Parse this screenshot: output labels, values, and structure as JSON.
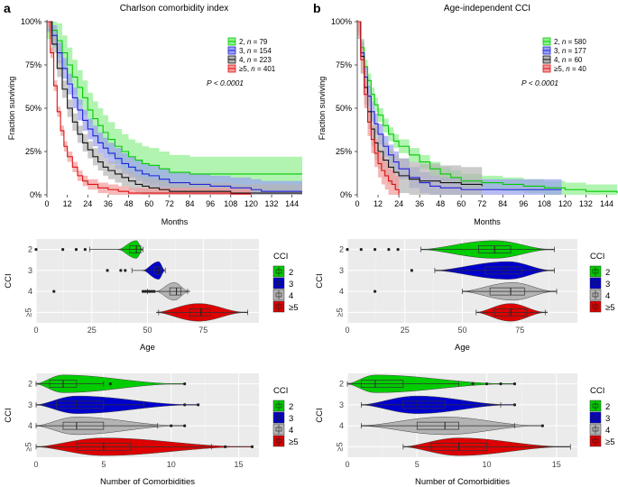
{
  "figure": {
    "panel_labels": [
      "a",
      "b"
    ]
  },
  "chart_data": [
    {
      "id": "km_a",
      "type": "line",
      "title": "Charlson comorbidity index",
      "xlabel": "Months",
      "ylabel": "Fraction surviving",
      "xlim": [
        0,
        150
      ],
      "ylim": [
        0,
        1
      ],
      "xticks": [
        "0",
        "12",
        "24",
        "36",
        "48",
        "60",
        "72",
        "84",
        "96",
        "108",
        "120",
        "132",
        "144"
      ],
      "yticks": [
        "0%",
        "25%",
        "50%",
        "75%",
        "100%"
      ],
      "pvalue": "P < 0.0001",
      "series": [
        {
          "name": "2",
          "n": "79",
          "color": "#00cc00",
          "band": "#8ef08e",
          "x": [
            0,
            3,
            6,
            9,
            12,
            15,
            18,
            21,
            24,
            27,
            30,
            33,
            36,
            40,
            44,
            48,
            52,
            56,
            60,
            66,
            72,
            84,
            96,
            108,
            120,
            132,
            150
          ],
          "y": [
            1,
            0.95,
            0.89,
            0.82,
            0.75,
            0.68,
            0.62,
            0.56,
            0.49,
            0.44,
            0.4,
            0.36,
            0.32,
            0.28,
            0.25,
            0.22,
            0.2,
            0.18,
            0.17,
            0.15,
            0.13,
            0.12,
            0.12,
            0.12,
            0.12,
            0.12,
            0.12
          ],
          "band_half": 0.1
        },
        {
          "name": "3",
          "n": "154",
          "color": "#2222dd",
          "band": "#9aa0f0",
          "x": [
            0,
            3,
            6,
            9,
            12,
            15,
            18,
            21,
            24,
            27,
            30,
            33,
            36,
            40,
            44,
            48,
            52,
            56,
            60,
            66,
            72,
            84,
            96,
            108,
            120,
            126,
            150
          ],
          "y": [
            1,
            0.92,
            0.82,
            0.73,
            0.64,
            0.56,
            0.49,
            0.43,
            0.38,
            0.34,
            0.3,
            0.27,
            0.24,
            0.21,
            0.18,
            0.16,
            0.14,
            0.12,
            0.11,
            0.09,
            0.07,
            0.06,
            0.05,
            0.04,
            0.03,
            0.02,
            0.02
          ],
          "band_half": 0.06
        },
        {
          "name": "4",
          "n": "223",
          "color": "#111111",
          "band": "#b5b5b5",
          "x": [
            0,
            3,
            6,
            9,
            12,
            15,
            18,
            21,
            24,
            27,
            30,
            33,
            36,
            40,
            44,
            48,
            52,
            56,
            60,
            66,
            72,
            84,
            96,
            108,
            120,
            150
          ],
          "y": [
            1,
            0.87,
            0.73,
            0.61,
            0.5,
            0.42,
            0.35,
            0.3,
            0.26,
            0.22,
            0.19,
            0.16,
            0.14,
            0.12,
            0.1,
            0.08,
            0.06,
            0.05,
            0.04,
            0.03,
            0.02,
            0.02,
            0.02,
            0.01,
            0.01,
            0.01
          ],
          "band_half": 0.05
        },
        {
          "name": "≥5",
          "n": "401",
          "color": "#dd1111",
          "band": "#f29a9a",
          "x": [
            0,
            2,
            4,
            6,
            8,
            10,
            12,
            15,
            18,
            21,
            24,
            30,
            36,
            42,
            48,
            60,
            72,
            84,
            96,
            108,
            120
          ],
          "y": [
            1,
            0.82,
            0.63,
            0.48,
            0.37,
            0.28,
            0.22,
            0.16,
            0.11,
            0.08,
            0.06,
            0.04,
            0.03,
            0.02,
            0.01,
            0.01,
            0.01,
            0.01,
            0.01,
            0.005,
            0.005
          ],
          "band_half": 0.03
        }
      ]
    },
    {
      "id": "km_b",
      "type": "line",
      "title": "Age-independent CCI",
      "xlabel": "Months",
      "ylabel": "Fraction surviving",
      "xlim": [
        0,
        150
      ],
      "ylim": [
        0,
        1
      ],
      "xticks": [
        "0",
        "12",
        "24",
        "36",
        "48",
        "60",
        "72",
        "84",
        "96",
        "108",
        "120",
        "132",
        "144"
      ],
      "yticks": [
        "0%",
        "25%",
        "50%",
        "75%",
        "100%"
      ],
      "pvalue": "P < 0.0001",
      "series": [
        {
          "name": "2",
          "n": "580",
          "color": "#00cc00",
          "band": "#8ef08e",
          "x": [
            0,
            2,
            4,
            6,
            8,
            10,
            12,
            15,
            18,
            21,
            24,
            30,
            36,
            42,
            48,
            54,
            60,
            72,
            84,
            96,
            108,
            120,
            132,
            150
          ],
          "y": [
            1,
            0.85,
            0.74,
            0.66,
            0.58,
            0.52,
            0.46,
            0.4,
            0.35,
            0.31,
            0.28,
            0.23,
            0.19,
            0.15,
            0.12,
            0.1,
            0.08,
            0.07,
            0.06,
            0.05,
            0.04,
            0.03,
            0.02,
            0.01
          ],
          "band_half": 0.04
        },
        {
          "name": "3",
          "n": "177",
          "color": "#2222dd",
          "band": "#9aa0f0",
          "x": [
            0,
            2,
            4,
            6,
            8,
            10,
            12,
            15,
            18,
            21,
            24,
            30,
            36,
            42,
            48,
            60,
            72,
            84,
            96,
            108,
            118
          ],
          "y": [
            1,
            0.82,
            0.68,
            0.57,
            0.48,
            0.41,
            0.35,
            0.28,
            0.23,
            0.19,
            0.15,
            0.1,
            0.07,
            0.05,
            0.04,
            0.03,
            0.03,
            0.03,
            0.03,
            0.03,
            0.03
          ],
          "band_half": 0.06
        },
        {
          "name": "4",
          "n": "60",
          "color": "#111111",
          "band": "#b5b5b5",
          "x": [
            0,
            2,
            4,
            6,
            8,
            10,
            12,
            15,
            18,
            21,
            24,
            30,
            36,
            48,
            60,
            72
          ],
          "y": [
            1,
            0.8,
            0.62,
            0.48,
            0.38,
            0.3,
            0.25,
            0.2,
            0.16,
            0.13,
            0.11,
            0.09,
            0.08,
            0.07,
            0.06,
            0.05
          ],
          "band_half": 0.1
        },
        {
          "name": "≥5",
          "n": "40",
          "color": "#dd1111",
          "band": "#f29a9a",
          "x": [
            0,
            2,
            4,
            6,
            8,
            10,
            12,
            14,
            16,
            18,
            20,
            22,
            24
          ],
          "y": [
            1,
            0.78,
            0.58,
            0.42,
            0.32,
            0.24,
            0.18,
            0.14,
            0.11,
            0.08,
            0.06,
            0.03,
            0.0
          ],
          "band_half": 0.08
        }
      ]
    },
    {
      "id": "age_a",
      "type": "violin",
      "xlabel": "Age",
      "ylabel": "CCI",
      "xlim": [
        0,
        100
      ],
      "xticks": [
        "0",
        "25",
        "50",
        "75"
      ],
      "legend_title": "CCI",
      "groups": [
        {
          "name": "2",
          "color": "#00cc00",
          "min": 24,
          "q1": 42,
          "median": 45,
          "q3": 47,
          "max": 48,
          "vmin": 37,
          "vmax": 48,
          "peak": 45,
          "outliers": [
            0,
            12,
            18,
            22
          ]
        },
        {
          "name": "3",
          "color": "#0000cc",
          "min": 43,
          "q1": 53,
          "median": 55,
          "q3": 56,
          "max": 58,
          "vmin": 48,
          "vmax": 58,
          "peak": 55,
          "outliers": [
            32,
            38,
            40
          ]
        },
        {
          "name": "4",
          "color": "#b3b3b3",
          "min": 50,
          "q1": 60,
          "median": 63,
          "q3": 65,
          "max": 68,
          "vmin": 54,
          "vmax": 69,
          "peak": 62,
          "outliers": [
            8,
            48,
            49,
            50,
            51,
            52,
            53
          ]
        },
        {
          "name": "≥5",
          "color": "#dd0000",
          "min": 55,
          "q1": 69,
          "median": 74,
          "q3": 78,
          "max": 95,
          "vmin": 54,
          "vmax": 95,
          "peak": 73,
          "outliers": []
        }
      ]
    },
    {
      "id": "age_b",
      "type": "violin",
      "xlabel": "Age",
      "ylabel": "CCI",
      "xlim": [
        0,
        100
      ],
      "xticks": [
        "0",
        "25",
        "50",
        "75"
      ],
      "legend_title": "CCI",
      "groups": [
        {
          "name": "2",
          "color": "#00cc00",
          "min": 32,
          "q1": 57,
          "median": 64,
          "q3": 71,
          "max": 90,
          "vmin": 32,
          "vmax": 90,
          "peak": 64,
          "outliers": [
            0,
            6,
            12,
            18,
            22
          ]
        },
        {
          "name": "3",
          "color": "#0000cc",
          "min": 38,
          "q1": 60,
          "median": 68,
          "q3": 76,
          "max": 90,
          "vmin": 38,
          "vmax": 90,
          "peak": 70,
          "outliers": [
            28
          ]
        },
        {
          "name": "4",
          "color": "#b3b3b3",
          "min": 50,
          "q1": 62,
          "median": 71,
          "q3": 77,
          "max": 91,
          "vmin": 50,
          "vmax": 91,
          "peak": 72,
          "outliers": [
            12
          ]
        },
        {
          "name": "≥5",
          "color": "#dd0000",
          "min": 56,
          "q1": 64,
          "median": 71,
          "q3": 78,
          "max": 86,
          "vmin": 56,
          "vmax": 87,
          "peak": 71,
          "outliers": []
        }
      ]
    },
    {
      "id": "como_a",
      "type": "violin",
      "xlabel": "Number of Comorbidities",
      "ylabel": "CCI",
      "xlim": [
        0,
        16.5
      ],
      "xticks": [
        "0",
        "5",
        "10",
        "15"
      ],
      "legend_title": "CCI",
      "groups": [
        {
          "name": "2",
          "color": "#00cc00",
          "min": 0,
          "q1": 1,
          "median": 2,
          "q3": 3,
          "max": 5,
          "vmin": 0,
          "vmax": 11,
          "peak": 2,
          "outliers": [
            5.5,
            11
          ]
        },
        {
          "name": "3",
          "color": "#0000cc",
          "min": 0,
          "q1": 1.5,
          "median": 3,
          "q3": 5,
          "max": 8,
          "vmin": 0,
          "vmax": 12,
          "peak": 3,
          "outliers": [
            11,
            12
          ]
        },
        {
          "name": "4",
          "color": "#b3b3b3",
          "min": 0,
          "q1": 2,
          "median": 3,
          "q3": 5,
          "max": 9,
          "vmin": 0,
          "vmax": 11,
          "peak": 3,
          "outliers": [
            10,
            11
          ]
        },
        {
          "name": "≥5",
          "color": "#dd0000",
          "min": 0,
          "q1": 3,
          "median": 5,
          "q3": 7,
          "max": 13,
          "vmin": 0,
          "vmax": 16,
          "peak": 5,
          "outliers": [
            14,
            16
          ]
        }
      ]
    },
    {
      "id": "como_b",
      "type": "violin",
      "xlabel": "Number of Comorbidities",
      "ylabel": "CCI",
      "xlim": [
        0,
        16.5
      ],
      "xticks": [
        "0",
        "5",
        "10",
        "15"
      ],
      "legend_title": "CCI",
      "groups": [
        {
          "name": "2",
          "color": "#00cc00",
          "min": 0,
          "q1": 1,
          "median": 2,
          "q3": 4,
          "max": 8,
          "vmin": 0,
          "vmax": 12,
          "peak": 2,
          "outliers": [
            9,
            10,
            11,
            12
          ]
        },
        {
          "name": "3",
          "color": "#0000cc",
          "min": 1,
          "q1": 4,
          "median": 5,
          "q3": 7,
          "max": 11,
          "vmin": 1,
          "vmax": 12,
          "peak": 5,
          "outliers": [
            12
          ]
        },
        {
          "name": "4",
          "color": "#b3b3b3",
          "min": 1,
          "q1": 5,
          "median": 7,
          "q3": 8,
          "max": 12,
          "vmin": 1,
          "vmax": 14,
          "peak": 7,
          "outliers": [
            14
          ]
        },
        {
          "name": "≥5",
          "color": "#dd0000",
          "min": 4,
          "q1": 6,
          "median": 8,
          "q3": 10,
          "max": 16,
          "vmin": 4,
          "vmax": 16,
          "peak": 8,
          "outliers": []
        }
      ]
    }
  ]
}
